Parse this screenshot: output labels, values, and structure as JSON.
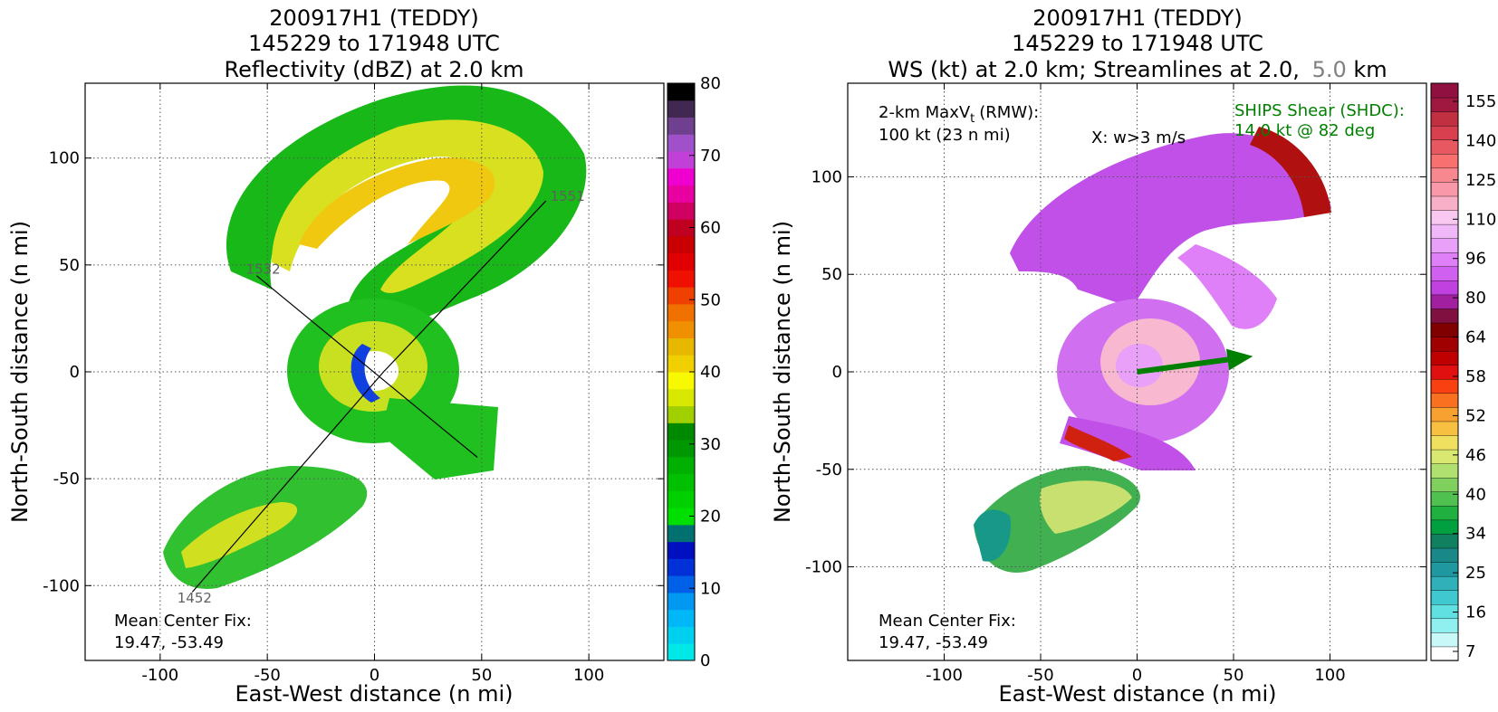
{
  "chart_data": [
    {
      "type": "heatmap",
      "title_lines": [
        "200917H1 (TEDDY)",
        "145229 to 171948 UTC",
        "Reflectivity (dBZ) at 2.0 km"
      ],
      "xlabel": "East-West distance (n mi)",
      "ylabel": "North-South distance (n mi)",
      "xlim": [
        -135,
        135
      ],
      "ylim": [
        -135,
        135
      ],
      "xticks": [
        -100,
        -50,
        0,
        50,
        100
      ],
      "yticks": [
        -100,
        -50,
        0,
        50,
        100
      ],
      "grid": true,
      "annotation_lines": [
        "Mean Center Fix:",
        "19.47, -53.49"
      ],
      "track_labels": [
        {
          "text": "1452",
          "x": -92,
          "y": -108
        },
        {
          "text": "1532",
          "x": -60,
          "y": 46
        },
        {
          "text": "1551",
          "x": 82,
          "y": 80
        }
      ],
      "colorbar": {
        "ticks": [
          0,
          10,
          20,
          30,
          40,
          50,
          60,
          70,
          80
        ],
        "min": 0,
        "max": 80,
        "colors": [
          "#00e8e8",
          "#00d0f0",
          "#00b8f8",
          "#0098f0",
          "#0060e8",
          "#0030d8",
          "#0010c0",
          "#007070",
          "#00e000",
          "#00d000",
          "#00c000",
          "#00b000",
          "#009800",
          "#008800",
          "#a0d000",
          "#d8e800",
          "#f8f800",
          "#f0d000",
          "#e8b800",
          "#f09000",
          "#f07000",
          "#f04000",
          "#f01000",
          "#e00000",
          "#c80000",
          "#c00020",
          "#d00060",
          "#e800a0",
          "#f000d0",
          "#c040d8",
          "#a050c8",
          "#704090",
          "#402850",
          "#000000"
        ]
      }
    },
    {
      "type": "heatmap",
      "title_lines": [
        "200917H1 (TEDDY)",
        "145229 to 171948 UTC"
      ],
      "title_line3": {
        "prefix": "WS (kt) at 2.0 km; Streamlines at 2.0,",
        "highlight": "5.0",
        "suffix": "km"
      },
      "xlabel": "East-West distance (n mi)",
      "ylabel": "North-South distance (n mi)",
      "xlim": [
        -150,
        150
      ],
      "ylim": [
        -148,
        148
      ],
      "xticks": [
        -100,
        -50,
        0,
        50,
        100
      ],
      "yticks": [
        -100,
        -50,
        0,
        50,
        100
      ],
      "grid": true,
      "max_vt_label": "2-km MaxV",
      "max_vt_sub": "t",
      "max_vt_rmw": "(RMW):",
      "max_vt_value": "100 kt (23 n mi)",
      "updraft_label": "X: w>3 m/s",
      "shear_lines": [
        "SHIPS Shear (SHDC):",
        "14.0 kt @ 82 deg"
      ],
      "shear_color": "#008000",
      "shear_vector": {
        "x0": 0,
        "y0": 0,
        "x1": 60,
        "y1": 8
      },
      "annotation_lines": [
        "Mean Center Fix:",
        "19.47, -53.49"
      ],
      "colorbar": {
        "ticks": [
          7,
          16,
          25,
          34,
          40,
          46,
          52,
          58,
          64,
          80,
          96,
          110,
          125,
          140,
          155
        ],
        "colors": [
          "#ffffff",
          "#c8f8f8",
          "#90f0f0",
          "#60e0e0",
          "#40c8d0",
          "#30b0b8",
          "#2098a0",
          "#188888",
          "#108060",
          "#00a040",
          "#20b040",
          "#50c050",
          "#80d060",
          "#b0e070",
          "#d8e870",
          "#f0e060",
          "#f8c040",
          "#f8a030",
          "#f87020",
          "#f84010",
          "#e01010",
          "#c00000",
          "#a00000",
          "#800000",
          "#801040",
          "#a020a0",
          "#c040e0",
          "#d060f0",
          "#e080f8",
          "#e8a0f8",
          "#f0b8f8",
          "#f8c8f0",
          "#f8b0c8",
          "#f898a8",
          "#f88890",
          "#f87070",
          "#e85860",
          "#d84050",
          "#c03040",
          "#a01840",
          "#901040"
        ]
      }
    }
  ]
}
